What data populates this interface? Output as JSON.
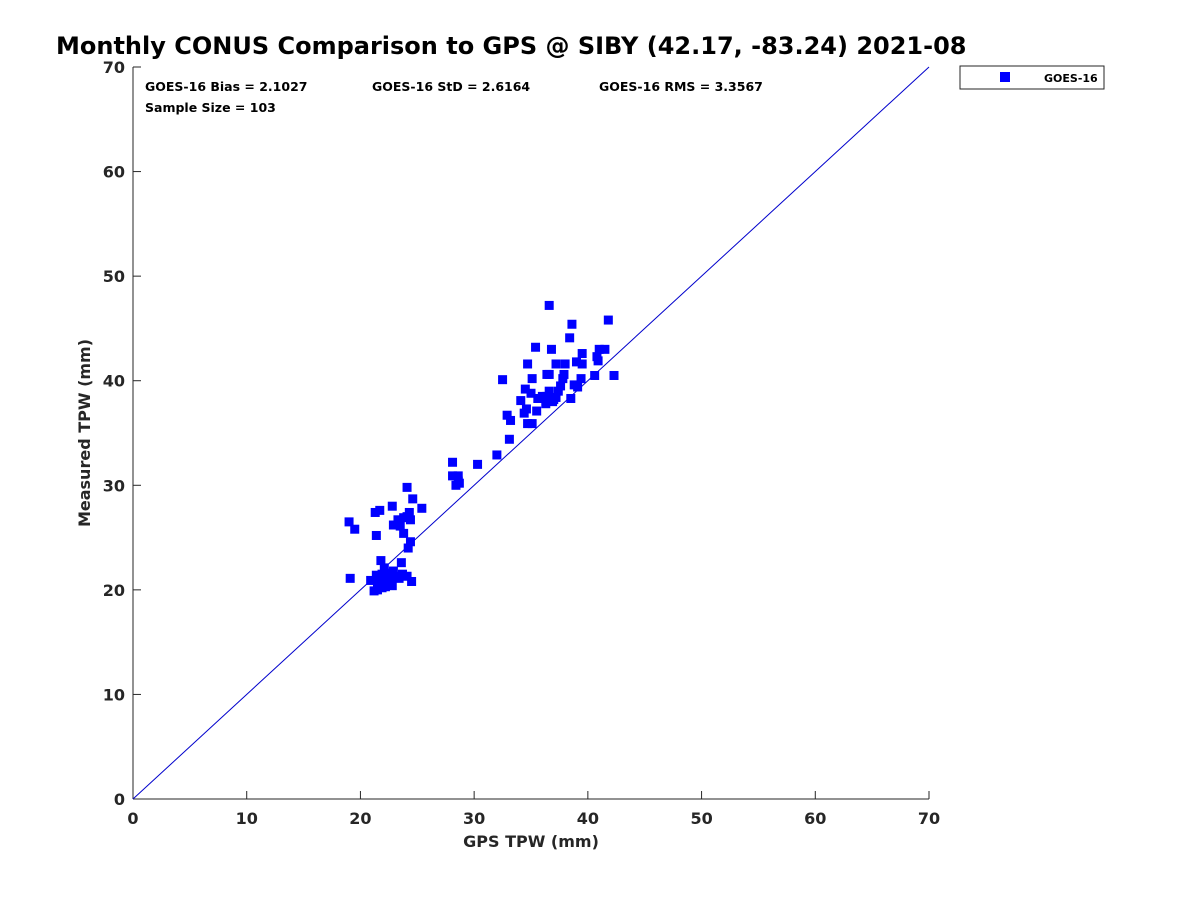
{
  "chart_data": {
    "type": "scatter",
    "title": "Monthly CONUS Comparison to GPS @ SIBY (42.17, -83.24) 2021-08",
    "xlabel": "GPS TPW (mm)",
    "ylabel": "Measured TPW (mm)",
    "xlim": [
      0,
      70
    ],
    "ylim": [
      0,
      70
    ],
    "xticks": [
      0,
      10,
      20,
      30,
      40,
      50,
      60,
      70
    ],
    "yticks": [
      0,
      10,
      20,
      30,
      40,
      50,
      60,
      70
    ],
    "grid": false,
    "legend_position": "top-right outside",
    "reference_line": {
      "from": [
        0,
        0
      ],
      "to": [
        70,
        70
      ],
      "color": "#0000cc"
    },
    "stats": {
      "bias": "GOES-16 Bias = 2.1027",
      "std": "GOES-16 StD = 2.6164",
      "rms": "GOES-16 RMS = 3.3567",
      "sample": "Sample Size = 103"
    },
    "series": [
      {
        "name": "GOES-16",
        "color": "#0000ff",
        "marker": "square",
        "points": [
          [
            36.6,
            47.2
          ],
          [
            38.6,
            45.4
          ],
          [
            41.8,
            45.8
          ],
          [
            38.4,
            44.1
          ],
          [
            35.4,
            43.2
          ],
          [
            36.8,
            43.0
          ],
          [
            41.0,
            43.0
          ],
          [
            41.5,
            43.0
          ],
          [
            39.5,
            42.6
          ],
          [
            40.8,
            42.3
          ],
          [
            40.9,
            41.9
          ],
          [
            37.2,
            41.6
          ],
          [
            38.0,
            41.6
          ],
          [
            39.5,
            41.6
          ],
          [
            34.7,
            41.6
          ],
          [
            39.0,
            41.8
          ],
          [
            36.6,
            40.6
          ],
          [
            36.4,
            40.6
          ],
          [
            37.9,
            40.6
          ],
          [
            40.6,
            40.5
          ],
          [
            42.3,
            40.5
          ],
          [
            32.5,
            40.1
          ],
          [
            35.1,
            40.2
          ],
          [
            37.8,
            40.2
          ],
          [
            39.4,
            40.2
          ],
          [
            34.5,
            39.2
          ],
          [
            37.6,
            39.5
          ],
          [
            39.1,
            39.4
          ],
          [
            38.8,
            39.6
          ],
          [
            35.0,
            38.8
          ],
          [
            36.6,
            39.0
          ],
          [
            37.4,
            39.0
          ],
          [
            36.4,
            38.5
          ],
          [
            35.6,
            38.3
          ],
          [
            38.5,
            38.3
          ],
          [
            36.0,
            38.5
          ],
          [
            37.2,
            38.4
          ],
          [
            37.0,
            38.2
          ],
          [
            36.9,
            38.0
          ],
          [
            34.1,
            38.1
          ],
          [
            36.3,
            37.8
          ],
          [
            34.6,
            37.3
          ],
          [
            35.5,
            37.1
          ],
          [
            34.4,
            36.9
          ],
          [
            32.9,
            36.7
          ],
          [
            33.2,
            36.2
          ],
          [
            34.7,
            35.9
          ],
          [
            35.1,
            35.9
          ],
          [
            33.1,
            34.4
          ],
          [
            32.0,
            32.9
          ],
          [
            28.1,
            32.2
          ],
          [
            30.3,
            32.0
          ],
          [
            28.1,
            30.9
          ],
          [
            28.6,
            30.9
          ],
          [
            28.6,
            30.4
          ],
          [
            28.7,
            30.2
          ],
          [
            28.4,
            30.0
          ],
          [
            24.1,
            29.8
          ],
          [
            24.6,
            28.7
          ],
          [
            25.4,
            27.8
          ],
          [
            22.8,
            28.0
          ],
          [
            21.7,
            27.6
          ],
          [
            21.3,
            27.4
          ],
          [
            24.3,
            27.4
          ],
          [
            24.1,
            27.0
          ],
          [
            23.8,
            26.9
          ],
          [
            24.4,
            26.7
          ],
          [
            23.3,
            26.7
          ],
          [
            19.0,
            26.5
          ],
          [
            22.9,
            26.2
          ],
          [
            23.5,
            26.1
          ],
          [
            19.5,
            25.8
          ],
          [
            23.8,
            25.4
          ],
          [
            21.4,
            25.2
          ],
          [
            24.4,
            24.6
          ],
          [
            24.2,
            24.0
          ],
          [
            21.8,
            22.8
          ],
          [
            23.6,
            22.6
          ],
          [
            22.1,
            22.1
          ],
          [
            22.9,
            21.8
          ],
          [
            22.5,
            21.6
          ],
          [
            23.7,
            21.5
          ],
          [
            21.9,
            21.5
          ],
          [
            21.4,
            21.4
          ],
          [
            24.1,
            21.3
          ],
          [
            23.2,
            21.3
          ],
          [
            22.7,
            21.2
          ],
          [
            19.1,
            21.1
          ],
          [
            23.4,
            21.1
          ],
          [
            22.3,
            21.0
          ],
          [
            22.2,
            20.9
          ],
          [
            20.9,
            20.9
          ],
          [
            24.5,
            20.8
          ],
          [
            21.8,
            20.7
          ],
          [
            21.5,
            20.6
          ],
          [
            22.4,
            20.6
          ],
          [
            22.1,
            20.5
          ],
          [
            22.8,
            20.4
          ],
          [
            22.2,
            20.3
          ],
          [
            21.9,
            20.2
          ],
          [
            21.5,
            20.0
          ],
          [
            21.2,
            19.9
          ],
          [
            22.5,
            20.5
          ]
        ]
      }
    ]
  }
}
